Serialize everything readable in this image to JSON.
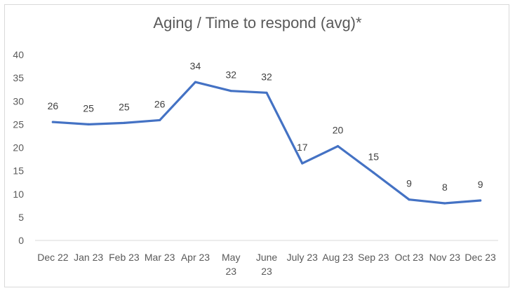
{
  "chart_data": {
    "type": "line",
    "title": "Aging / Time to respond (avg)*",
    "xlabel": "",
    "ylabel": "",
    "ylim": [
      0,
      40
    ],
    "y_ticks": [
      "0",
      "5",
      "10",
      "15",
      "20",
      "25",
      "30",
      "35",
      "40"
    ],
    "categories": [
      "Dec 22",
      "Jan 23",
      "Feb 23",
      "Mar 23",
      "Apr 23",
      "May 23",
      "June 23",
      "July 23",
      "Aug 23",
      "Sep 23",
      "Oct 23",
      "Nov 23",
      "Dec 23"
    ],
    "category_label_lines": [
      [
        "Dec 22"
      ],
      [
        "Jan 23"
      ],
      [
        "Feb 23"
      ],
      [
        "Mar 23"
      ],
      [
        "Apr 23"
      ],
      [
        "May",
        "23"
      ],
      [
        "June",
        "23"
      ],
      [
        "July 23"
      ],
      [
        "Aug 23"
      ],
      [
        "Sep 23"
      ],
      [
        "Oct 23"
      ],
      [
        "Nov 23"
      ],
      [
        "Dec 23"
      ]
    ],
    "series": [
      {
        "values": [
          25.5,
          25,
          25.3,
          25.9,
          34.1,
          32.2,
          31.8,
          16.6,
          20.3,
          14.6,
          8.8,
          8,
          8.6
        ],
        "data_labels": [
          "26",
          "25",
          "25",
          "26",
          "34",
          "32",
          "32",
          "17",
          "20",
          "15",
          "9",
          "8",
          "9"
        ]
      }
    ],
    "grid": false,
    "legend": "none",
    "line_color": "#4472c4"
  }
}
